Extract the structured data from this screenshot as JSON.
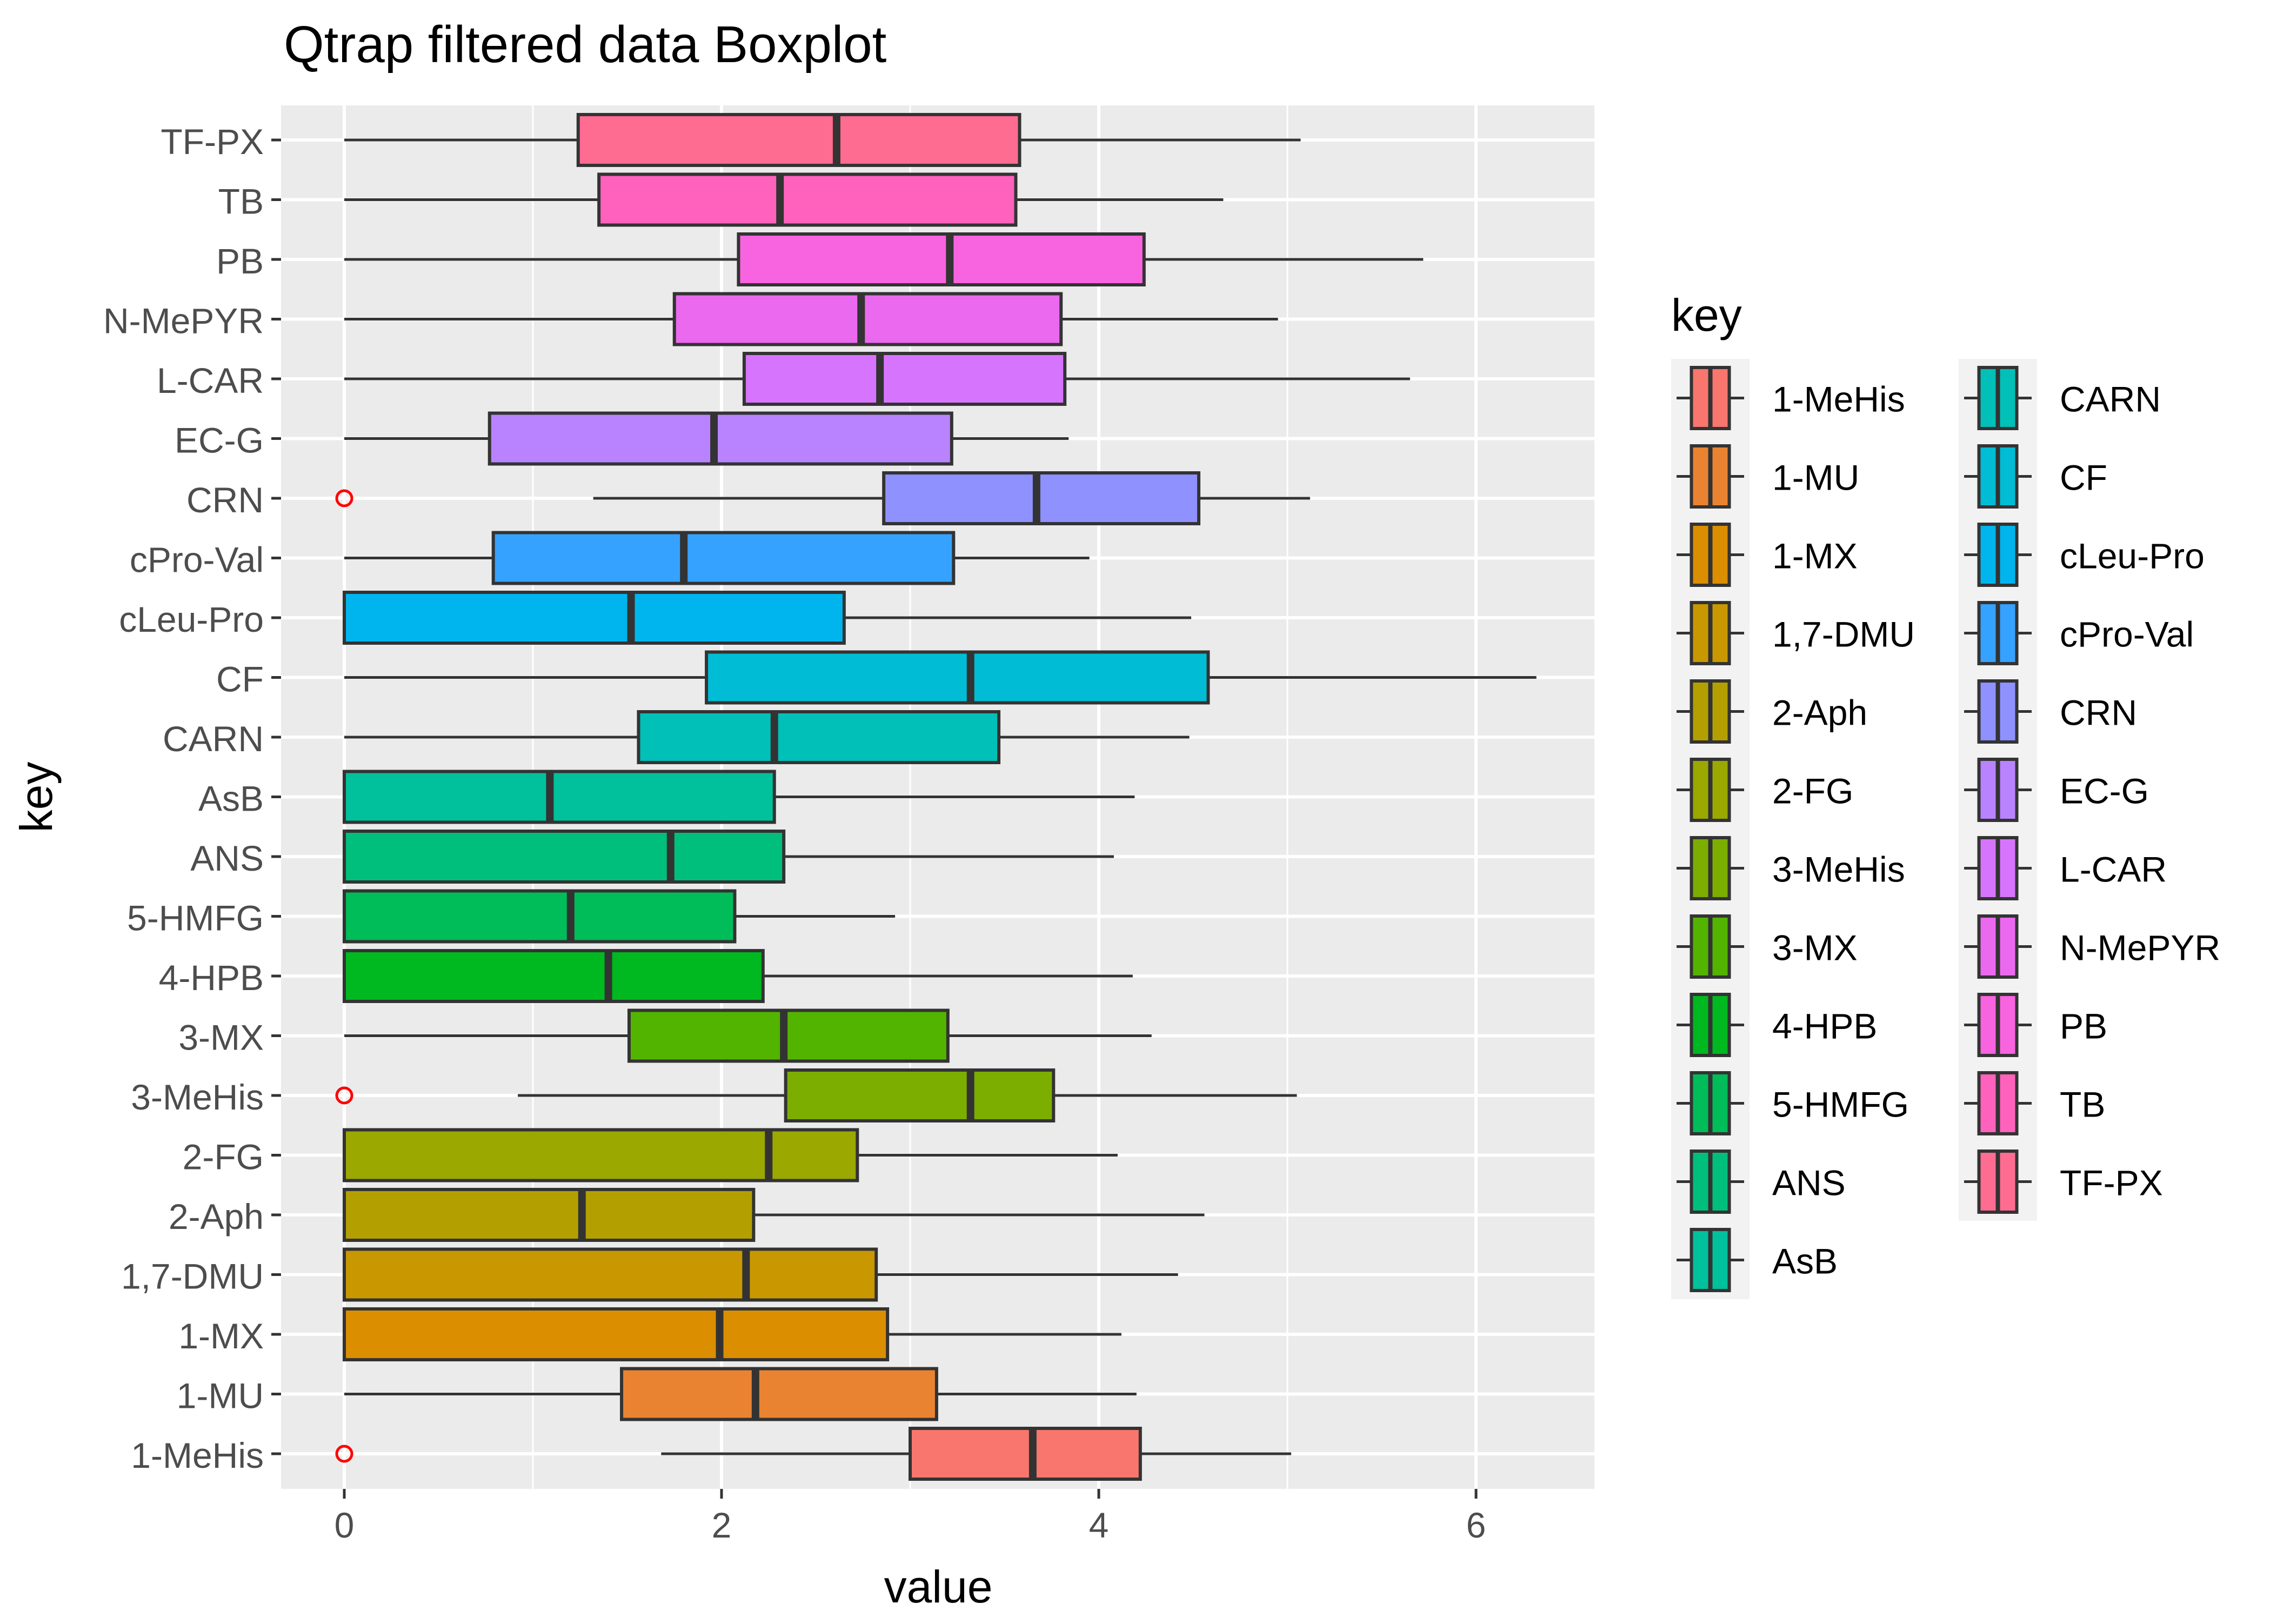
{
  "chart_data": {
    "type": "boxplot",
    "orientation": "horizontal",
    "title": "Qtrap filtered data Boxplot",
    "xlabel": "value",
    "ylabel": "key",
    "xlim": [
      -0.35,
      6.55
    ],
    "x_ticks": [
      0,
      2,
      4,
      6
    ],
    "grid": true,
    "legend": {
      "title": "key",
      "position": "right",
      "columns": 2,
      "column_1": [
        "1-MeHis",
        "1-MU",
        "1-MX",
        "1,7-DMU",
        "2-Aph",
        "2-FG",
        "3-MeHis",
        "3-MX",
        "4-HPB",
        "5-HMFG",
        "ANS",
        "AsB"
      ],
      "column_2": [
        "CARN",
        "CF",
        "cLeu-Pro",
        "cPro-Val",
        "CRN",
        "EC-G",
        "L-CAR",
        "N-MePYR",
        "PB",
        "TB",
        "TF-PX"
      ]
    },
    "categories": [
      "1-MeHis",
      "1-MU",
      "1-MX",
      "1,7-DMU",
      "2-Aph",
      "2-FG",
      "3-MeHis",
      "3-MX",
      "4-HPB",
      "5-HMFG",
      "ANS",
      "AsB",
      "CARN",
      "CF",
      "cLeu-Pro",
      "cPro-Val",
      "CRN",
      "EC-G",
      "L-CAR",
      "N-MePYR",
      "PB",
      "TB",
      "TF-PX"
    ],
    "boxes": [
      {
        "key": "1-MeHis",
        "color": "#F8766D",
        "whisker_low": 1.68,
        "q1": 3.0,
        "median": 3.65,
        "q3": 4.22,
        "whisker_high": 5.02,
        "outliers": [
          0
        ]
      },
      {
        "key": "1-MU",
        "color": "#EA8331",
        "whisker_low": 0,
        "q1": 1.47,
        "median": 2.18,
        "q3": 3.14,
        "whisker_high": 4.2,
        "outliers": []
      },
      {
        "key": "1-MX",
        "color": "#DB8E00",
        "whisker_low": 0,
        "q1": 0,
        "median": 1.99,
        "q3": 2.88,
        "whisker_high": 4.12,
        "outliers": []
      },
      {
        "key": "1,7-DMU",
        "color": "#C99800",
        "whisker_low": 0,
        "q1": 0,
        "median": 2.13,
        "q3": 2.82,
        "whisker_high": 4.42,
        "outliers": []
      },
      {
        "key": "2-Aph",
        "color": "#B3A000",
        "whisker_low": 0,
        "q1": 0,
        "median": 1.26,
        "q3": 2.17,
        "whisker_high": 4.56,
        "outliers": []
      },
      {
        "key": "2-FG",
        "color": "#9AA800",
        "whisker_low": 0,
        "q1": 0,
        "median": 2.25,
        "q3": 2.72,
        "whisker_high": 4.1,
        "outliers": []
      },
      {
        "key": "3-MeHis",
        "color": "#7CAE00",
        "whisker_low": 0.92,
        "q1": 2.34,
        "median": 3.32,
        "q3": 3.76,
        "whisker_high": 5.05,
        "outliers": [
          0
        ]
      },
      {
        "key": "3-MX",
        "color": "#53B400",
        "whisker_low": 0,
        "q1": 1.51,
        "median": 2.33,
        "q3": 3.2,
        "whisker_high": 4.28,
        "outliers": []
      },
      {
        "key": "4-HPB",
        "color": "#00B81F",
        "whisker_low": 0,
        "q1": 0,
        "median": 1.4,
        "q3": 2.22,
        "whisker_high": 4.18,
        "outliers": []
      },
      {
        "key": "5-HMFG",
        "color": "#00BC59",
        "whisker_low": 0,
        "q1": 0,
        "median": 1.2,
        "q3": 2.07,
        "whisker_high": 2.92,
        "outliers": []
      },
      {
        "key": "ANS",
        "color": "#00BF7D",
        "whisker_low": 0,
        "q1": 0,
        "median": 1.73,
        "q3": 2.33,
        "whisker_high": 4.08,
        "outliers": []
      },
      {
        "key": "AsB",
        "color": "#00C19C",
        "whisker_low": 0,
        "q1": 0,
        "median": 1.09,
        "q3": 2.28,
        "whisker_high": 4.19,
        "outliers": []
      },
      {
        "key": "CARN",
        "color": "#00C0B8",
        "whisker_low": 0,
        "q1": 1.56,
        "median": 2.28,
        "q3": 3.47,
        "whisker_high": 4.48,
        "outliers": []
      },
      {
        "key": "CF",
        "color": "#00BCD4",
        "whisker_low": 0,
        "q1": 1.92,
        "median": 3.32,
        "q3": 4.58,
        "whisker_high": 6.32,
        "outliers": []
      },
      {
        "key": "cLeu-Pro",
        "color": "#00B5EE",
        "whisker_low": 0,
        "q1": 0,
        "median": 1.52,
        "q3": 2.65,
        "whisker_high": 4.49,
        "outliers": []
      },
      {
        "key": "cPro-Val",
        "color": "#35A2FF",
        "whisker_low": 0,
        "q1": 0.79,
        "median": 1.8,
        "q3": 3.23,
        "whisker_high": 3.95,
        "outliers": []
      },
      {
        "key": "CRN",
        "color": "#8F91FF",
        "whisker_low": 1.32,
        "q1": 2.86,
        "median": 3.67,
        "q3": 4.53,
        "whisker_high": 5.12,
        "outliers": [
          0
        ]
      },
      {
        "key": "EC-G",
        "color": "#B983FF",
        "whisker_low": 0,
        "q1": 0.77,
        "median": 1.96,
        "q3": 3.22,
        "whisker_high": 3.84,
        "outliers": []
      },
      {
        "key": "L-CAR",
        "color": "#D774FD",
        "whisker_low": 0,
        "q1": 2.12,
        "median": 2.84,
        "q3": 3.82,
        "whisker_high": 5.65,
        "outliers": []
      },
      {
        "key": "N-MePYR",
        "color": "#EB69EF",
        "whisker_low": 0,
        "q1": 1.75,
        "median": 2.74,
        "q3": 3.8,
        "whisker_high": 4.95,
        "outliers": []
      },
      {
        "key": "PB",
        "color": "#F863DF",
        "whisker_low": 0,
        "q1": 2.09,
        "median": 3.21,
        "q3": 4.24,
        "whisker_high": 5.72,
        "outliers": []
      },
      {
        "key": "TB",
        "color": "#FF62BC",
        "whisker_low": 0,
        "q1": 1.35,
        "median": 2.31,
        "q3": 3.56,
        "whisker_high": 4.66,
        "outliers": []
      },
      {
        "key": "TF-PX",
        "color": "#FF6C91",
        "whisker_low": 0,
        "q1": 1.24,
        "median": 2.61,
        "q3": 3.58,
        "whisker_high": 5.07,
        "outliers": []
      }
    ],
    "outlier_color": "#FF0000"
  }
}
